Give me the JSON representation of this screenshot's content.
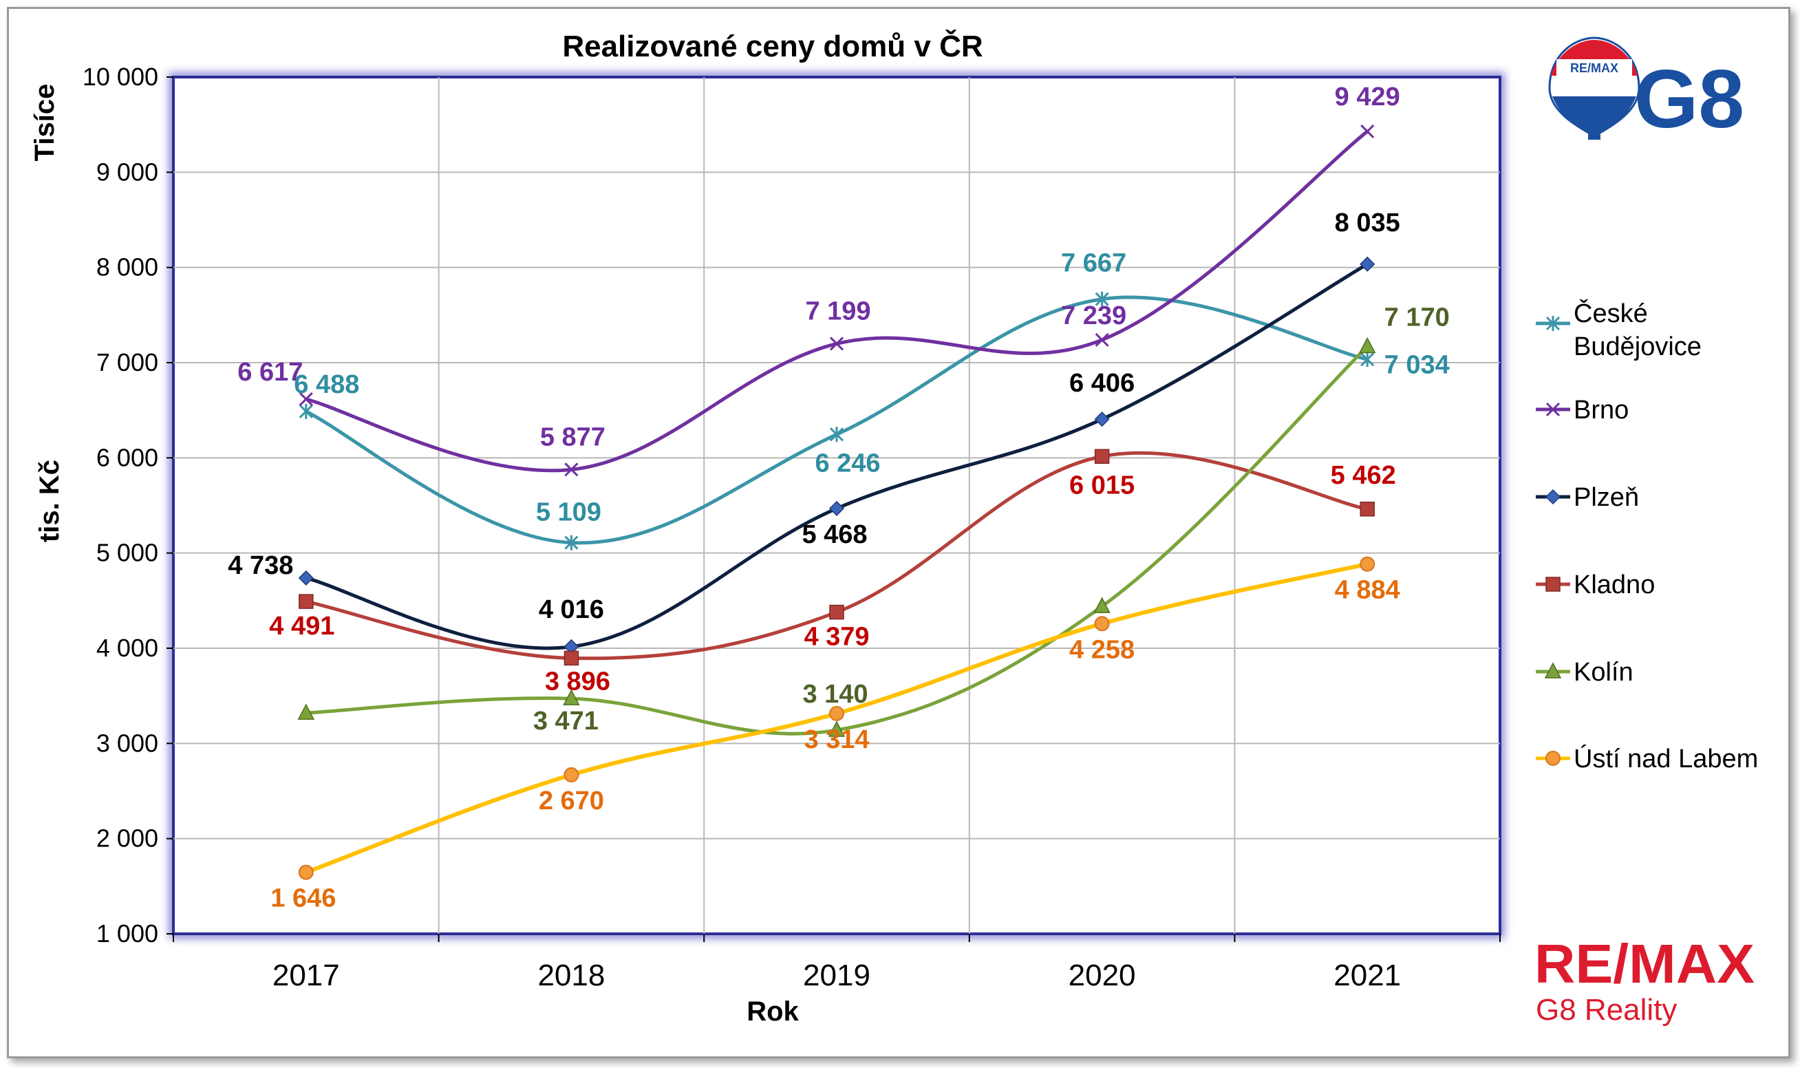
{
  "chart_data": {
    "type": "line",
    "title": "Realizované ceny domů  v ČR",
    "xlabel": "Rok",
    "ylabel": "tis. Kč",
    "y_unit_label": "Tisíce",
    "ylim": [
      1000,
      10000
    ],
    "yticks": [
      1000,
      2000,
      3000,
      4000,
      5000,
      6000,
      7000,
      8000,
      9000,
      10000
    ],
    "ytick_labels": [
      "1 000",
      "2 000",
      "3 000",
      "4 000",
      "5 000",
      "6 000",
      "7 000",
      "8 000",
      "9 000",
      "10 000"
    ],
    "categories": [
      "2017",
      "2018",
      "2019",
      "2020",
      "2021"
    ],
    "grid": true,
    "legend_position": "right",
    "series": [
      {
        "name": "České Budějovice",
        "color": "#3b95a8",
        "label_color": "#2f8ea1",
        "marker": "star",
        "values": [
          6488,
          5109,
          6246,
          7667,
          7034
        ],
        "labels": [
          "6 488",
          "5 109",
          "6 246",
          "7 667",
          "7 034"
        ]
      },
      {
        "name": "Brno",
        "color": "#7030a0",
        "label_color": "#7030a0",
        "marker": "x",
        "values": [
          6617,
          5877,
          7199,
          7239,
          9429
        ],
        "labels": [
          "6 617",
          "5 877",
          "7 199",
          "7 239",
          "9 429"
        ]
      },
      {
        "name": "Plzeň",
        "color": "#0e1f3f",
        "label_color": "#000000",
        "marker": "diamond",
        "values": [
          4738,
          4016,
          5468,
          6406,
          8035
        ],
        "labels": [
          "4 738",
          "4 016",
          "5 468",
          "6 406",
          "8 035"
        ]
      },
      {
        "name": "Kladno",
        "color": "#b5403a",
        "label_color": "#c00000",
        "marker": "square",
        "values": [
          4491,
          3896,
          4379,
          6015,
          5462
        ],
        "labels": [
          "4 491",
          "3 896",
          "4 379",
          "6 015",
          "5 462"
        ]
      },
      {
        "name": "Kolín",
        "color": "#7aa33a",
        "label_color": "#4f6228",
        "marker": "triangle",
        "values": [
          3320,
          3471,
          3140,
          4440,
          7170
        ],
        "labels": [
          "",
          "3 471",
          "3 140",
          "",
          "7 170"
        ]
      },
      {
        "name": "Ústí nad Labem",
        "color": "#ffc000",
        "label_color": "#e46c0a",
        "marker": "circle",
        "values": [
          1646,
          2670,
          3314,
          4258,
          4884
        ],
        "labels": [
          "1 646",
          "2 670",
          "3 314",
          "4 258",
          "4 884"
        ]
      }
    ]
  },
  "branding": {
    "top_logo_text": "G8",
    "balloon_text": "RE/MAX",
    "bottom_logo_text": "RE/MAX",
    "bottom_logo_sub": "G8 Reality",
    "brand_red": "#dc1c2e",
    "brand_blue": "#1b4fa0"
  }
}
